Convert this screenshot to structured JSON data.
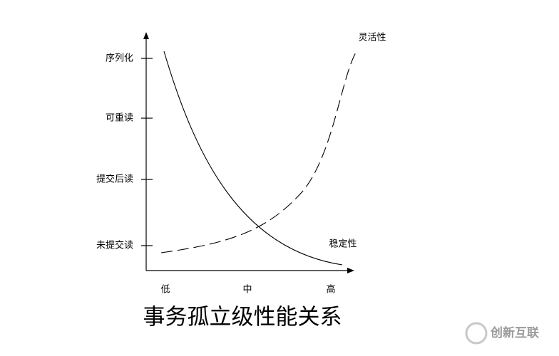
{
  "title": "事务孤立级性能关系",
  "y_axis_labels": [
    "序列化",
    "可重读",
    "提交后读",
    "未提交读"
  ],
  "x_axis_labels": [
    "低",
    "中",
    "高"
  ],
  "curves": [
    {
      "label": "灵活性"
    },
    {
      "label": "稳定性"
    }
  ],
  "watermark": "创新互联"
}
